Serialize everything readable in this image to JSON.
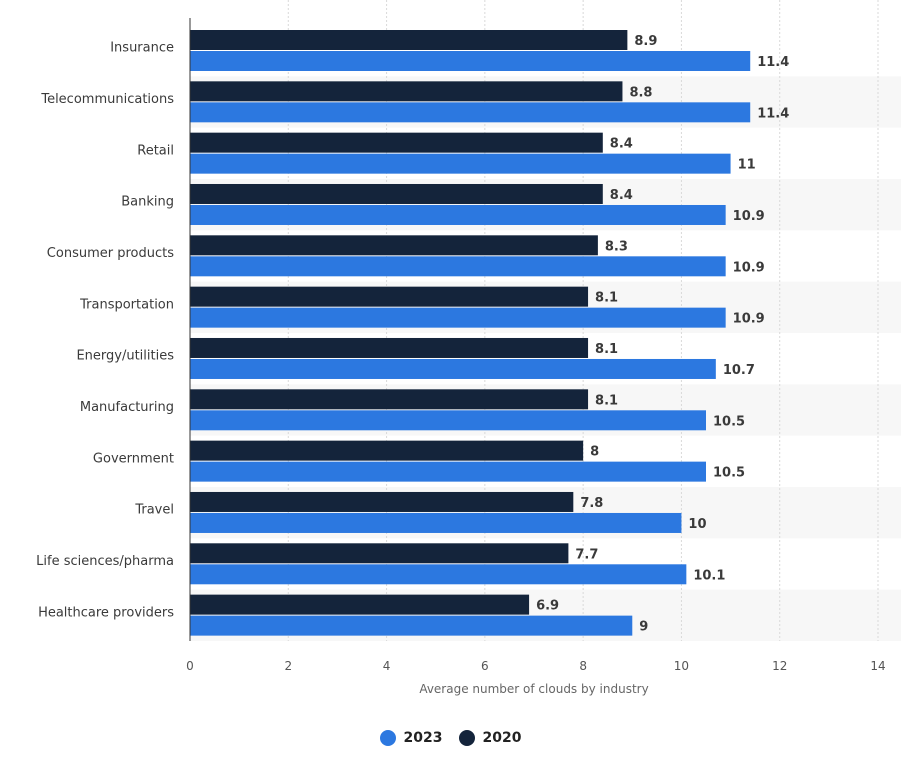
{
  "colors": {
    "series_2023": "#2c78e0",
    "series_2020": "#14243b",
    "band": "#f7f7f7",
    "grid": "#d9d9d9",
    "axis": "#333333"
  },
  "chart_data": {
    "type": "bar",
    "orientation": "horizontal",
    "title": "",
    "xlabel": "Average number of clouds by industry",
    "ylabel": "",
    "xlim": [
      0,
      14
    ],
    "xticks": [
      0,
      2,
      4,
      6,
      8,
      10,
      12,
      14
    ],
    "grid": true,
    "legend_position": "bottom-center",
    "categories": [
      "Insurance",
      "Telecommunications",
      "Retail",
      "Banking",
      "Consumer products",
      "Transportation",
      "Energy/utilities",
      "Manufacturing",
      "Government",
      "Travel",
      "Life sciences/pharma",
      "Healthcare providers"
    ],
    "series": [
      {
        "name": "2020",
        "values": [
          8.9,
          8.8,
          8.4,
          8.4,
          8.3,
          8.1,
          8.1,
          8.1,
          8,
          7.8,
          7.7,
          6.9
        ]
      },
      {
        "name": "2023",
        "values": [
          11.4,
          11.4,
          11,
          10.9,
          10.9,
          10.9,
          10.7,
          10.5,
          10.5,
          10,
          10.1,
          9
        ]
      }
    ],
    "data_labels": {
      "2020": [
        "8.9",
        "8.8",
        "8.4",
        "8.4",
        "8.3",
        "8.1",
        "8.1",
        "8.1",
        "8",
        "7.8",
        "7.7",
        "6.9"
      ],
      "2023": [
        "11.4",
        "11.4",
        "11",
        "10.9",
        "10.9",
        "10.9",
        "10.7",
        "10.5",
        "10.5",
        "10",
        "10.1",
        "9"
      ]
    }
  },
  "legend": {
    "items": [
      {
        "label": "2023",
        "color": "#2c78e0"
      },
      {
        "label": "2020",
        "color": "#14243b"
      }
    ]
  }
}
